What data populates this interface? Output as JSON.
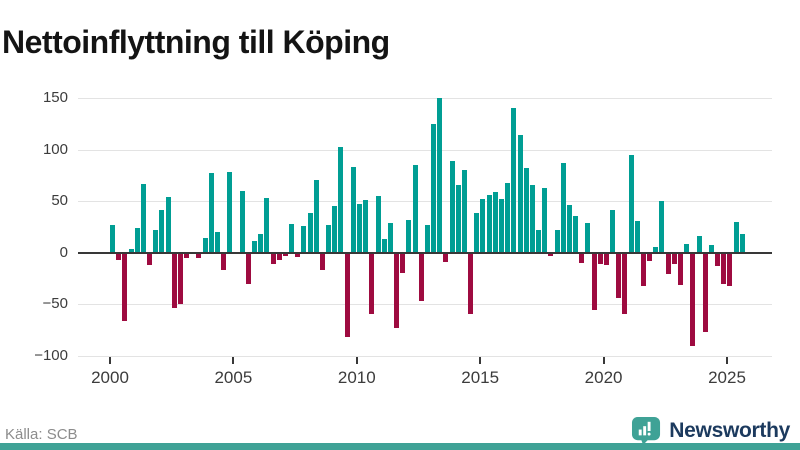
{
  "title": "Nettoinflyttning till Köping",
  "footer": {
    "source": "Källa: SCB",
    "brand": "Newsworthy"
  },
  "colors": {
    "positive_bar": "#009E94",
    "negative_bar": "#9E0B40",
    "zero_line": "#383838",
    "gridline": "#E3E3E3",
    "axis_text": "#3C3C3C",
    "title_text": "#141414",
    "source_text": "#8C8C8C",
    "brand_text": "#1C3A5E",
    "brand_teal": "#3FA296",
    "footer_strip": "#3FA296"
  },
  "chart_data": {
    "type": "bar",
    "title": "Nettoinflyttning till Köping",
    "xlabel": "",
    "ylabel": "",
    "ylim": [
      -100,
      150
    ],
    "grid": "horizontal",
    "legend": "none",
    "x_unit": "quarter",
    "y_ticks": [
      {
        "value": 150,
        "label": "150"
      },
      {
        "value": 100,
        "label": "100"
      },
      {
        "value": 50,
        "label": "50"
      },
      {
        "value": 0,
        "label": "0"
      },
      {
        "value": -50,
        "label": "−50"
      },
      {
        "value": -100,
        "label": "−100"
      }
    ],
    "x_ticks": [
      {
        "year": 2000,
        "label": "2000"
      },
      {
        "year": 2005,
        "label": "2005"
      },
      {
        "year": 2010,
        "label": "2010"
      },
      {
        "year": 2015,
        "label": "2015"
      },
      {
        "year": 2020,
        "label": "2020"
      },
      {
        "year": 2025,
        "label": "2025"
      }
    ],
    "years": [
      {
        "year": 2000,
        "quarters": [
          27,
          -7,
          -66,
          4
        ]
      },
      {
        "year": 2001,
        "quarters": [
          24,
          67,
          -12,
          22
        ]
      },
      {
        "year": 2002,
        "quarters": [
          42,
          54,
          -54,
          -50
        ]
      },
      {
        "year": 2003,
        "quarters": [
          -5,
          0,
          -5,
          14
        ]
      },
      {
        "year": 2004,
        "quarters": [
          77,
          20,
          -17,
          78
        ]
      },
      {
        "year": 2005,
        "quarters": [
          0,
          60,
          -30,
          11
        ]
      },
      {
        "year": 2006,
        "quarters": [
          18,
          53,
          -11,
          -7
        ]
      },
      {
        "year": 2007,
        "quarters": [
          -3,
          28,
          -4,
          26
        ]
      },
      {
        "year": 2008,
        "quarters": [
          39,
          71,
          -17,
          27
        ]
      },
      {
        "year": 2009,
        "quarters": [
          45,
          103,
          -82,
          83
        ]
      },
      {
        "year": 2010,
        "quarters": [
          47,
          51,
          -59,
          55
        ]
      },
      {
        "year": 2011,
        "quarters": [
          13,
          29,
          -73,
          -20
        ]
      },
      {
        "year": 2012,
        "quarters": [
          32,
          85,
          -47,
          27
        ]
      },
      {
        "year": 2013,
        "quarters": [
          125,
          150,
          -9,
          89
        ]
      },
      {
        "year": 2014,
        "quarters": [
          66,
          80,
          -59,
          39
        ]
      },
      {
        "year": 2015,
        "quarters": [
          52,
          56,
          59,
          52
        ]
      },
      {
        "year": 2016,
        "quarters": [
          68,
          140,
          114,
          82
        ]
      },
      {
        "year": 2017,
        "quarters": [
          66,
          22,
          63,
          -3
        ]
      },
      {
        "year": 2018,
        "quarters": [
          22,
          87,
          46,
          36
        ]
      },
      {
        "year": 2019,
        "quarters": [
          -10,
          29,
          -55,
          -11
        ]
      },
      {
        "year": 2020,
        "quarters": [
          -12,
          42,
          -44,
          -59
        ]
      },
      {
        "year": 2021,
        "quarters": [
          95,
          31,
          -32,
          -8
        ]
      },
      {
        "year": 2022,
        "quarters": [
          6,
          50,
          -21,
          -11
        ]
      },
      {
        "year": 2023,
        "quarters": [
          -31,
          9,
          -90,
          16
        ]
      },
      {
        "year": 2024,
        "quarters": [
          -77,
          8,
          -13,
          -30
        ]
      },
      {
        "year": 2025,
        "quarters": [
          -32,
          30,
          18
        ]
      }
    ]
  }
}
